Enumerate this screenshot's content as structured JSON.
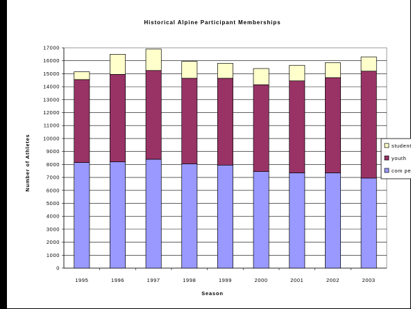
{
  "chart_data": {
    "type": "bar",
    "stacked": true,
    "title": "Historical Alpine Participant Memberships",
    "xlabel": "Season",
    "ylabel": "Number of Athletes",
    "categories": [
      "1995",
      "1996",
      "1997",
      "1998",
      "1999",
      "2000",
      "2001",
      "2002",
      "2003"
    ],
    "ylim": [
      0,
      17000
    ],
    "ytick_step": 1000,
    "grid": true,
    "legend_position": "right",
    "series": [
      {
        "name": "com pet",
        "color": "#9999ff",
        "values": [
          8150,
          8200,
          8400,
          8050,
          7950,
          7450,
          7350,
          7350,
          6950
        ]
      },
      {
        "name": "youth",
        "color": "#993366",
        "values": [
          6400,
          6750,
          6850,
          6600,
          6700,
          6700,
          7100,
          7350,
          8250
        ]
      },
      {
        "name": "student",
        "color": "#ffffcc",
        "values": [
          600,
          1550,
          1650,
          1300,
          1150,
          1250,
          1200,
          1150,
          1100
        ]
      }
    ]
  }
}
